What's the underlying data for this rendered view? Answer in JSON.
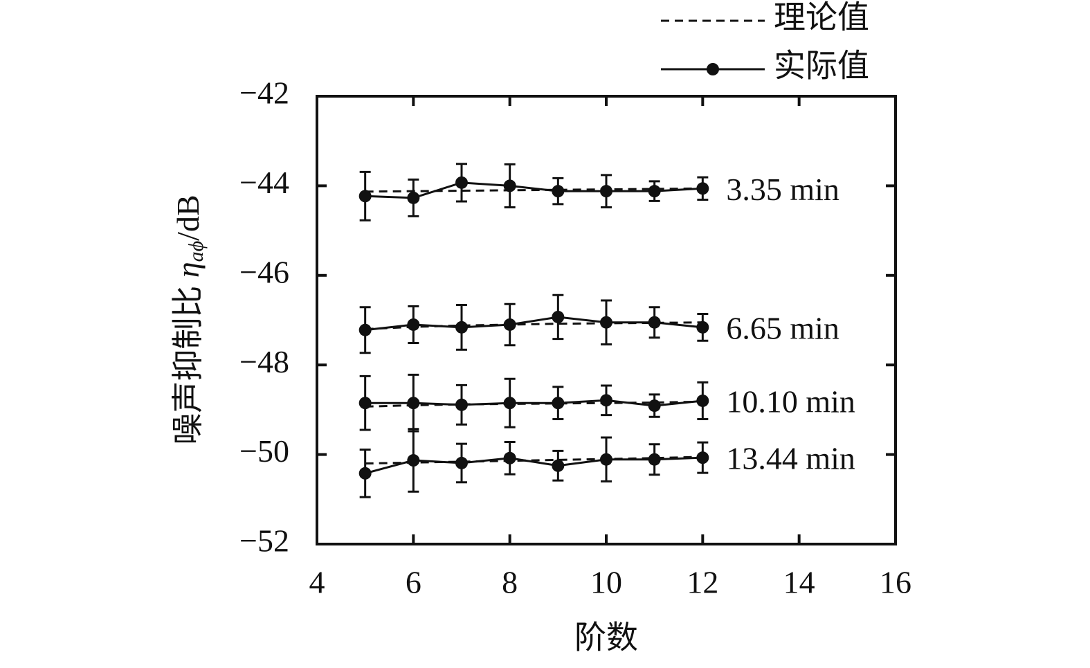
{
  "chart_data": {
    "type": "errorbar-line",
    "xlabel": "阶数",
    "ylabel_main": "噪声抑制比 ",
    "ylabel_symbol": "η",
    "ylabel_sub": "aϕ",
    "ylabel_unit": "/dB",
    "legend": {
      "theory": "理论值",
      "actual": "实际值"
    },
    "color": "#111111",
    "x": [
      5,
      6,
      7,
      8,
      9,
      10,
      11,
      12
    ],
    "xlim": [
      4,
      16
    ],
    "xticks": [
      4,
      6,
      8,
      10,
      12,
      14,
      16
    ],
    "ylim": [
      -52,
      -42
    ],
    "yticks": [
      {
        "value": -52,
        "label": "−52"
      },
      {
        "value": -50,
        "label": "−50"
      },
      {
        "value": -48,
        "label": "−48"
      },
      {
        "value": -46,
        "label": "−46"
      },
      {
        "value": -44,
        "label": "−44"
      },
      {
        "value": -42,
        "label": "−42"
      }
    ],
    "series": [
      {
        "name": "3.35 min",
        "actual": [
          -44.23,
          -44.27,
          -43.93,
          -44.0,
          -44.12,
          -44.12,
          -44.12,
          -44.06
        ],
        "errors": [
          0.54,
          0.41,
          0.42,
          0.48,
          0.29,
          0.36,
          0.22,
          0.25
        ],
        "theory": [
          -44.13,
          -44.12,
          -44.11,
          -44.1,
          -44.09,
          -44.08,
          -44.07,
          -44.06
        ]
      },
      {
        "name": "6.65 min",
        "actual": [
          -47.22,
          -47.1,
          -47.16,
          -47.1,
          -46.93,
          -47.05,
          -47.05,
          -47.16
        ],
        "errors": [
          0.51,
          0.41,
          0.5,
          0.46,
          0.49,
          0.49,
          0.34,
          0.3
        ],
        "theory": [
          -47.2,
          -47.15,
          -47.12,
          -47.1,
          -47.08,
          -47.07,
          -47.06,
          -47.05
        ]
      },
      {
        "name": "10.10 min",
        "actual": [
          -48.85,
          -48.85,
          -48.89,
          -48.85,
          -48.85,
          -48.79,
          -48.91,
          -48.8
        ],
        "errors": [
          0.6,
          0.63,
          0.44,
          0.54,
          0.36,
          0.33,
          0.25,
          0.41
        ],
        "theory": [
          -48.93,
          -48.9,
          -48.88,
          -48.87,
          -48.86,
          -48.85,
          -48.84,
          -48.82
        ]
      },
      {
        "name": "13.44 min",
        "actual": [
          -50.42,
          -50.13,
          -50.19,
          -50.08,
          -50.25,
          -50.11,
          -50.11,
          -50.07
        ],
        "errors": [
          0.53,
          0.7,
          0.43,
          0.36,
          0.33,
          0.49,
          0.34,
          0.34
        ],
        "theory": [
          -50.2,
          -50.18,
          -50.16,
          -50.14,
          -50.12,
          -50.1,
          -50.08,
          -50.05
        ]
      }
    ]
  }
}
